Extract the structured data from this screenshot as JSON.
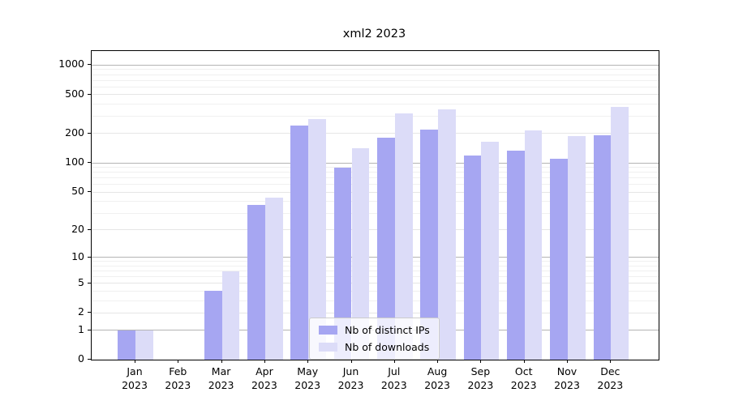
{
  "chart_data": {
    "type": "bar",
    "title": "xml2 2023",
    "categories": [
      "Jan 2023",
      "Feb 2023",
      "Mar 2023",
      "Apr 2023",
      "May 2023",
      "Jun 2023",
      "Jul 2023",
      "Aug 2023",
      "Sep 2023",
      "Oct 2023",
      "Nov 2023",
      "Dec 2023"
    ],
    "series": [
      {
        "name": "Nb of distinct IPs",
        "color": "#a6a6f2",
        "values": [
          1,
          0,
          4,
          37,
          240,
          89,
          181,
          219,
          118,
          134,
          111,
          192
        ]
      },
      {
        "name": "Nb of downloads",
        "color": "#dcdcf8",
        "values": [
          1,
          0,
          7,
          44,
          280,
          140,
          319,
          353,
          164,
          216,
          188,
          372
        ]
      }
    ],
    "yscale": "log1p",
    "ylim": [
      0,
      1390
    ],
    "y_ticks": [
      0,
      1,
      2,
      5,
      10,
      20,
      50,
      100,
      200,
      500,
      1000
    ],
    "y_major_gridlines": [
      1,
      10,
      100,
      1000
    ],
    "y_minor_gridlines": [
      3,
      4,
      6,
      7,
      8,
      9,
      30,
      40,
      60,
      70,
      80,
      90,
      300,
      400,
      600,
      700,
      800,
      900
    ],
    "grid": true,
    "legend_position": "inside-lower-center"
  },
  "legend": {
    "items": [
      {
        "label": "Nb of distinct IPs",
        "color": "#a6a6f2"
      },
      {
        "label": "Nb of downloads",
        "color": "#dcdcf8"
      }
    ]
  },
  "colors": {
    "background": "#ffffff",
    "axis": "#000000",
    "text": "#000000",
    "major_gridline": "#b4b4b4",
    "labeled_gridline": "#e6e6e6",
    "minor_gridline": "#f0f0f0"
  }
}
